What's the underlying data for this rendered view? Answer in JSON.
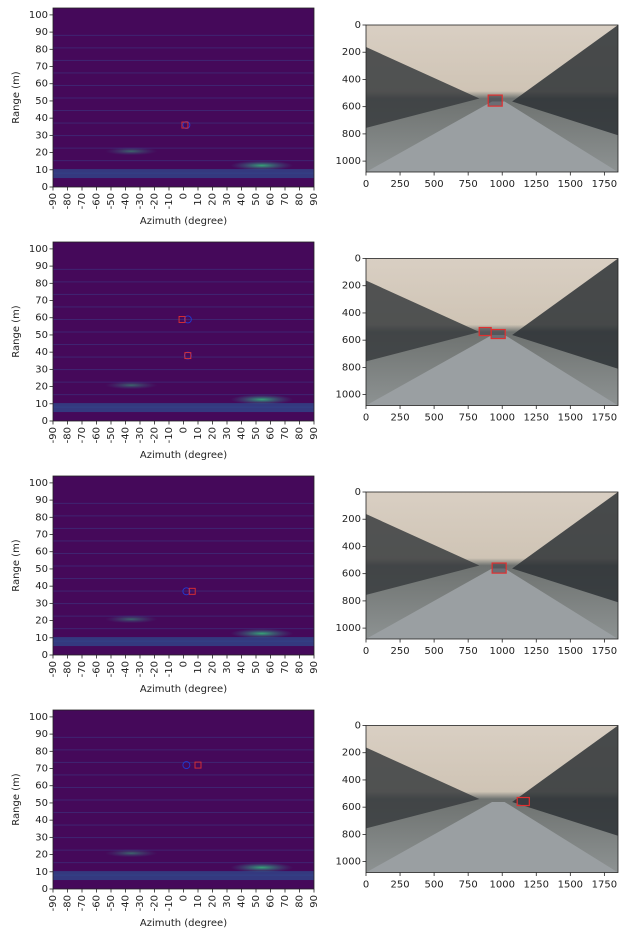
{
  "chart_data": [
    {
      "type": "heatmap",
      "xlabel": "Azimuth (degree)",
      "ylabel": "Range (m)",
      "xlim": [
        -90,
        90
      ],
      "ylim": [
        0,
        104
      ],
      "xticks": [
        -90,
        -80,
        -70,
        -60,
        -50,
        -40,
        -30,
        -20,
        -10,
        0,
        10,
        20,
        30,
        40,
        50,
        60,
        70,
        80,
        90
      ],
      "yticks": [
        0,
        10,
        20,
        30,
        40,
        50,
        60,
        70,
        80,
        90,
        100
      ],
      "series": [
        {
          "color": "#1f3bd6",
          "marker": "circle",
          "x": [
            2
          ],
          "y": [
            36
          ]
        },
        {
          "color": "#e03030",
          "marker": "square",
          "x": [
            1
          ],
          "y": [
            36
          ]
        }
      ]
    },
    {
      "type": "image",
      "xlim": [
        0,
        1850
      ],
      "ylim": [
        1080,
        0
      ],
      "xticks": [
        0,
        250,
        500,
        750,
        1000,
        1250,
        1500,
        1750
      ],
      "yticks": [
        0,
        200,
        400,
        600,
        800,
        1000
      ],
      "boxes": [
        {
          "color": "#e03030",
          "x": [
            897,
            1000
          ],
          "y": [
            515,
            596
          ]
        }
      ]
    },
    {
      "type": "heatmap",
      "xlabel": "Azimuth (degree)",
      "ylabel": "Range (m)",
      "xlim": [
        -90,
        90
      ],
      "ylim": [
        0,
        104
      ],
      "xticks": [
        -90,
        -80,
        -70,
        -60,
        -50,
        -40,
        -30,
        -20,
        -10,
        0,
        10,
        20,
        30,
        40,
        50,
        60,
        70,
        80,
        90
      ],
      "yticks": [
        0,
        10,
        20,
        30,
        40,
        50,
        60,
        70,
        80,
        90,
        100
      ],
      "series": [
        {
          "color": "#1f3bd6",
          "marker": "circle",
          "x": [
            3,
            3
          ],
          "y": [
            59,
            38
          ]
        },
        {
          "color": "#e03030",
          "marker": "square",
          "x": [
            -1,
            3
          ],
          "y": [
            59,
            38
          ]
        }
      ]
    },
    {
      "type": "image",
      "xlim": [
        0,
        1850
      ],
      "ylim": [
        1080,
        0
      ],
      "xticks": [
        0,
        250,
        500,
        750,
        1000,
        1250,
        1500,
        1750
      ],
      "yticks": [
        0,
        200,
        400,
        600,
        800,
        1000
      ],
      "boxes": [
        {
          "color": "#e03030",
          "x": [
            831,
            919
          ],
          "y": [
            507,
            566
          ]
        },
        {
          "color": "#e03030",
          "x": [
            919,
            1022
          ],
          "y": [
            522,
            588
          ]
        }
      ]
    },
    {
      "type": "heatmap",
      "xlabel": "Azimuth (degree)",
      "ylabel": "Range (m)",
      "xlim": [
        -90,
        90
      ],
      "ylim": [
        0,
        104
      ],
      "xticks": [
        -90,
        -80,
        -70,
        -60,
        -50,
        -40,
        -30,
        -20,
        -10,
        0,
        10,
        20,
        30,
        40,
        50,
        60,
        70,
        80,
        90
      ],
      "yticks": [
        0,
        10,
        20,
        30,
        40,
        50,
        60,
        70,
        80,
        90,
        100
      ],
      "series": [
        {
          "color": "#1f3bd6",
          "marker": "circle",
          "x": [
            2
          ],
          "y": [
            37
          ]
        },
        {
          "color": "#e03030",
          "marker": "square",
          "x": [
            6
          ],
          "y": [
            37
          ]
        }
      ]
    },
    {
      "type": "image",
      "xlim": [
        0,
        1850
      ],
      "ylim": [
        1080,
        0
      ],
      "xticks": [
        0,
        250,
        500,
        750,
        1000,
        1250,
        1500,
        1750
      ],
      "yticks": [
        0,
        200,
        400,
        600,
        800,
        1000
      ],
      "boxes": [
        {
          "color": "#e03030",
          "x": [
            926,
            1029
          ],
          "y": [
            522,
            596
          ]
        }
      ]
    },
    {
      "type": "heatmap",
      "xlabel": "Azimuth (degree)",
      "ylabel": "Range (m)",
      "xlim": [
        -90,
        90
      ],
      "ylim": [
        0,
        104
      ],
      "xticks": [
        -90,
        -80,
        -70,
        -60,
        -50,
        -40,
        -30,
        -20,
        -10,
        0,
        10,
        20,
        30,
        40,
        50,
        60,
        70,
        80,
        90
      ],
      "yticks": [
        0,
        10,
        20,
        30,
        40,
        50,
        60,
        70,
        80,
        90,
        100
      ],
      "series": [
        {
          "color": "#1f3bd6",
          "marker": "circle",
          "x": [
            2
          ],
          "y": [
            72
          ]
        },
        {
          "color": "#e03030",
          "marker": "square",
          "x": [
            10
          ],
          "y": [
            72
          ]
        }
      ]
    },
    {
      "type": "image",
      "xlim": [
        0,
        1850
      ],
      "ylim": [
        1080,
        0
      ],
      "xticks": [
        0,
        250,
        500,
        750,
        1000,
        1250,
        1500,
        1750
      ],
      "yticks": [
        0,
        200,
        400,
        600,
        800,
        1000
      ],
      "boxes": [
        {
          "color": "#e03030",
          "x": [
            1110,
            1199
          ],
          "y": [
            529,
            588
          ]
        }
      ]
    }
  ]
}
